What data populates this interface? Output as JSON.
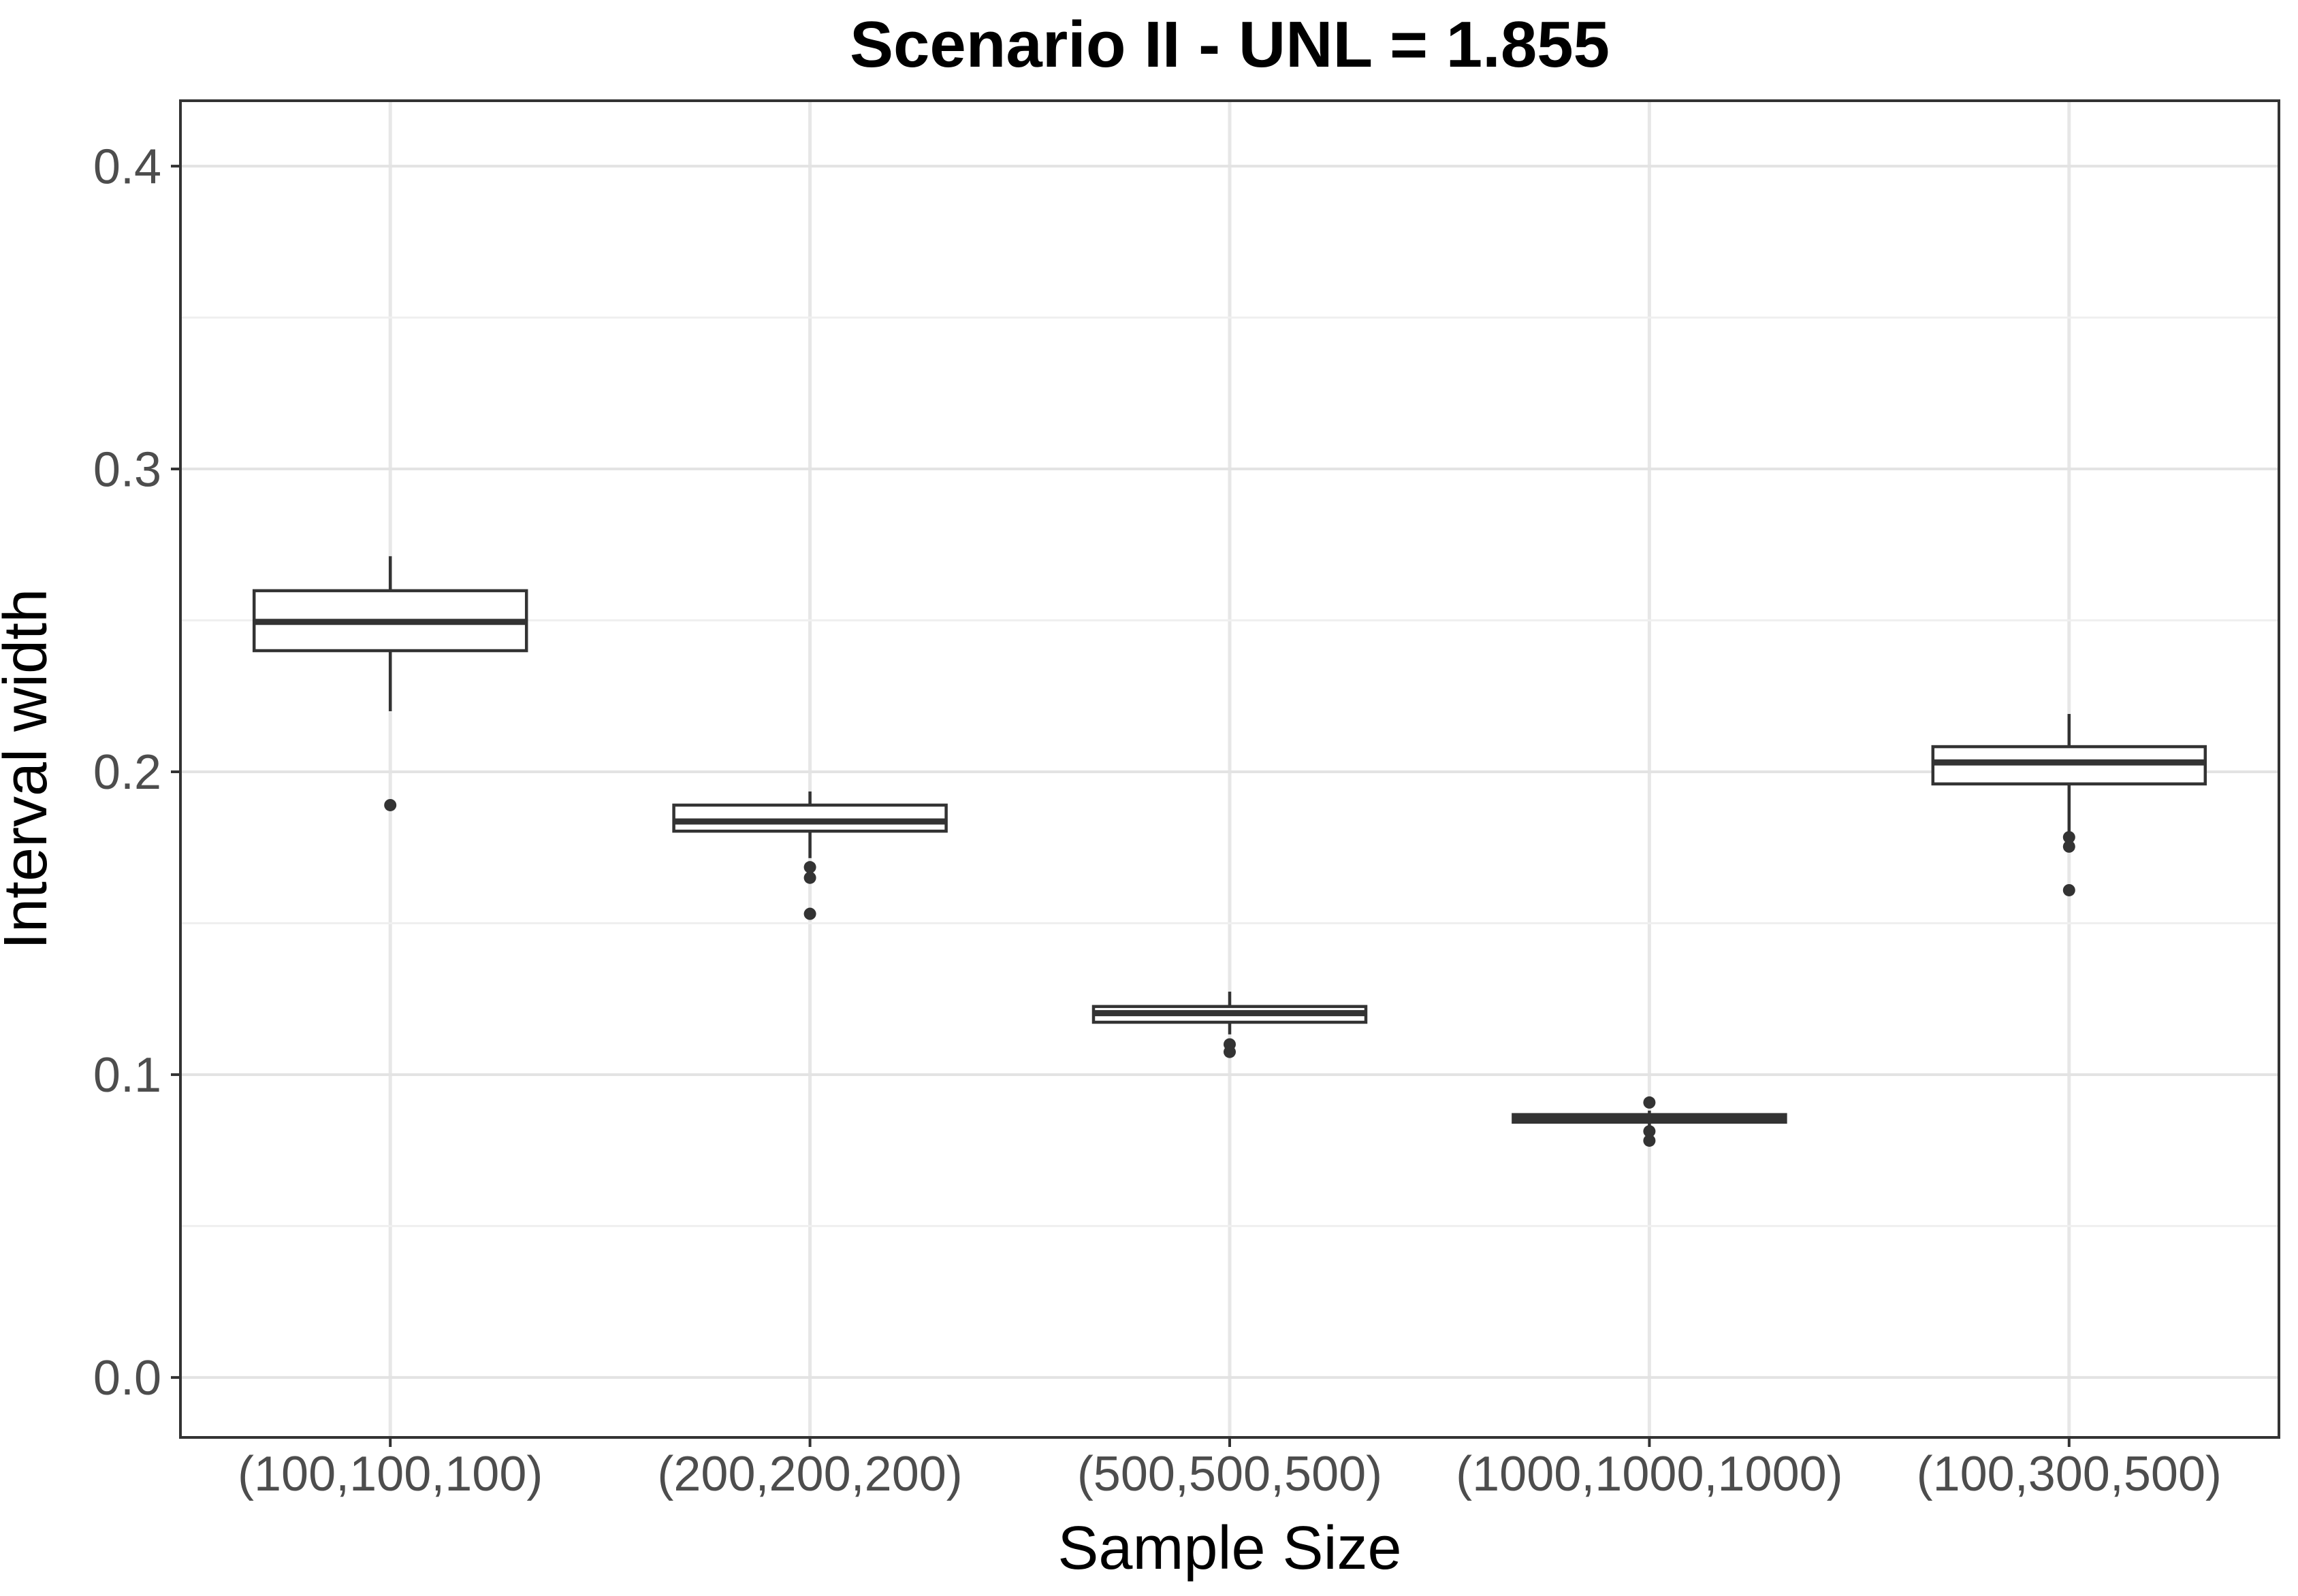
{
  "chart_data": {
    "type": "boxplot",
    "title": "Scenario II - UNL = 1.855",
    "xlabel": "Sample Size",
    "ylabel": "Interval width",
    "categories": [
      "(100,100,100)",
      "(200,200,200)",
      "(500,500,500)",
      "(1000,1000,1000)",
      "(100,300,500)"
    ],
    "ylim": [
      -0.0198,
      0.4216
    ],
    "y_ticks": [
      {
        "value": 0.0,
        "label": "0.0"
      },
      {
        "value": 0.1,
        "label": "0.1"
      },
      {
        "value": 0.2,
        "label": "0.2"
      },
      {
        "value": 0.3,
        "label": "0.3"
      },
      {
        "value": 0.4,
        "label": "0.4"
      }
    ],
    "y_minor_ticks": [
      0.05,
      0.15,
      0.25,
      0.35
    ],
    "grid": "on",
    "legend": "none",
    "boxes": [
      {
        "category": "(100,100,100)",
        "whisker_low": 0.22,
        "q1": 0.24,
        "median": 0.2495,
        "q3": 0.2598,
        "whisker_high": 0.2712,
        "outliers": [
          0.189
        ]
      },
      {
        "category": "(200,200,200)",
        "whisker_low": 0.1715,
        "q1": 0.1804,
        "median": 0.1836,
        "q3": 0.189,
        "whisker_high": 0.1935,
        "outliers": [
          0.1685,
          0.165,
          0.1531
        ]
      },
      {
        "category": "(500,500,500)",
        "whisker_low": 0.1133,
        "q1": 0.1173,
        "median": 0.1203,
        "q3": 0.1225,
        "whisker_high": 0.1274,
        "outliers": [
          0.11,
          0.1075
        ]
      },
      {
        "category": "(1000,1000,1000)",
        "whisker_low": 0.0829,
        "q1": 0.0843,
        "median": 0.0855,
        "q3": 0.0868,
        "whisker_high": 0.0881,
        "outliers": [
          0.0908,
          0.0813,
          0.0782
        ]
      },
      {
        "category": "(100,300,500)",
        "whisker_low": 0.1795,
        "q1": 0.196,
        "median": 0.2031,
        "q3": 0.2083,
        "whisker_high": 0.2191,
        "outliers": [
          0.1784,
          0.1753,
          0.1609
        ]
      }
    ],
    "style": {
      "box_stroke": "#333333",
      "box_fill": "#ffffff",
      "grid_major": "#e3e3e3",
      "grid_minor": "#efefef",
      "grid_vertical": "#e7e7e7",
      "panel_border": "#333333",
      "tick_color": "#333333",
      "tick_label_color": "#4d4d4d",
      "title_color": "#000000",
      "background": "#ffffff"
    }
  }
}
